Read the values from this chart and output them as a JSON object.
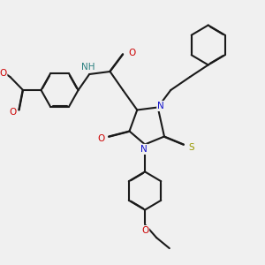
{
  "bg_color": "#f0f0f0",
  "bond_color": "#1a1a1a",
  "bond_width": 1.5,
  "dbo": 0.012,
  "colors": {
    "C": "#1a1a1a",
    "N": "#1010cc",
    "O": "#cc0000",
    "S": "#999900",
    "H": "#2a8080"
  },
  "fs": 7.5
}
